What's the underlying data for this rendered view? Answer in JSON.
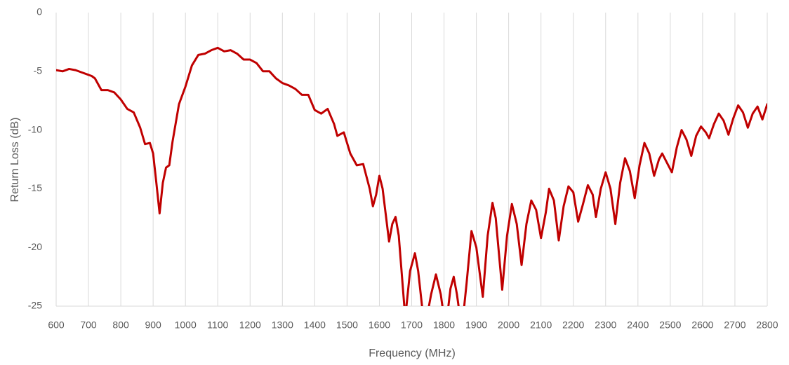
{
  "chart_data": {
    "type": "line",
    "xlabel": "Frequency (MHz)",
    "ylabel": "Return Loss (dB)",
    "x": [
      600,
      620,
      640,
      660,
      680,
      700,
      710,
      720,
      740,
      760,
      780,
      800,
      820,
      840,
      860,
      875,
      890,
      900,
      910,
      920,
      930,
      940,
      950,
      960,
      980,
      1000,
      1020,
      1040,
      1060,
      1080,
      1100,
      1120,
      1140,
      1160,
      1180,
      1200,
      1220,
      1240,
      1260,
      1280,
      1300,
      1320,
      1340,
      1360,
      1380,
      1400,
      1420,
      1440,
      1460,
      1470,
      1490,
      1510,
      1530,
      1550,
      1570,
      1580,
      1590,
      1600,
      1610,
      1630,
      1640,
      1650,
      1660,
      1680,
      1695,
      1710,
      1720,
      1740,
      1760,
      1775,
      1790,
      1805,
      1820,
      1830,
      1840,
      1855,
      1870,
      1885,
      1900,
      1920,
      1935,
      1950,
      1960,
      1980,
      1995,
      2010,
      2025,
      2040,
      2055,
      2070,
      2085,
      2100,
      2115,
      2125,
      2140,
      2155,
      2170,
      2185,
      2200,
      2215,
      2230,
      2245,
      2260,
      2270,
      2285,
      2300,
      2315,
      2330,
      2345,
      2360,
      2375,
      2390,
      2405,
      2420,
      2435,
      2450,
      2465,
      2475,
      2490,
      2505,
      2520,
      2535,
      2550,
      2565,
      2580,
      2595,
      2610,
      2620,
      2635,
      2650,
      2665,
      2680,
      2695,
      2710,
      2725,
      2740,
      2755,
      2770,
      2785,
      2800
    ],
    "series": [
      {
        "name": "Return Loss",
        "color": "#c00000",
        "values": [
          -4.9,
          -5.0,
          -4.8,
          -4.9,
          -5.1,
          -5.3,
          -5.4,
          -5.6,
          -6.6,
          -6.6,
          -6.8,
          -7.4,
          -8.2,
          -8.5,
          -9.8,
          -11.2,
          -11.1,
          -12,
          -14.5,
          -17.1,
          -14.5,
          -13.2,
          -13,
          -11,
          -7.8,
          -6.3,
          -4.5,
          -3.6,
          -3.5,
          -3.2,
          -3.0,
          -3.3,
          -3.2,
          -3.5,
          -4.0,
          -4.0,
          -4.3,
          -5.0,
          -5.0,
          -5.6,
          -6.0,
          -6.2,
          -6.5,
          -7.0,
          -7.0,
          -8.3,
          -8.6,
          -8.2,
          -9.5,
          -10.5,
          -10.2,
          -12.0,
          -13.0,
          -12.9,
          -15.0,
          -16.5,
          -15.5,
          -13.9,
          -15.0,
          -19.5,
          -18.0,
          -17.4,
          -19.0,
          -26,
          -22,
          -20.5,
          -22,
          -27,
          -24,
          -22.3,
          -24,
          -27,
          -23.5,
          -22.5,
          -24,
          -27,
          -23,
          -18.6,
          -20,
          -24.2,
          -19,
          -16.2,
          -17.5,
          -23.6,
          -19,
          -16.3,
          -18,
          -21.5,
          -18,
          -16,
          -16.8,
          -19.2,
          -17,
          -15.0,
          -16,
          -19.4,
          -16.5,
          -14.8,
          -15.3,
          -17.8,
          -16.3,
          -14.7,
          -15.5,
          -17.4,
          -15,
          -13.6,
          -15,
          -18.0,
          -14.5,
          -12.4,
          -13.5,
          -15.8,
          -13,
          -11.1,
          -12,
          -13.9,
          -12.5,
          -12.0,
          -12.8,
          -13.6,
          -11.5,
          -10.0,
          -10.8,
          -12.2,
          -10.5,
          -9.7,
          -10.2,
          -10.7,
          -9.5,
          -8.6,
          -9.2,
          -10.4,
          -9.0,
          -7.9,
          -8.5,
          -9.8,
          -8.6,
          -8.0,
          -9.1,
          -7.8
        ]
      }
    ],
    "xlim": [
      600,
      2800
    ],
    "xticks": [
      600,
      700,
      800,
      900,
      1000,
      1100,
      1200,
      1300,
      1400,
      1500,
      1600,
      1700,
      1800,
      1900,
      2000,
      2100,
      2200,
      2300,
      2400,
      2500,
      2600,
      2700,
      2800
    ],
    "ylim": [
      -25,
      0
    ],
    "yticks": [
      0,
      -5,
      -10,
      -15,
      -20,
      -25
    ],
    "grid": "x"
  }
}
